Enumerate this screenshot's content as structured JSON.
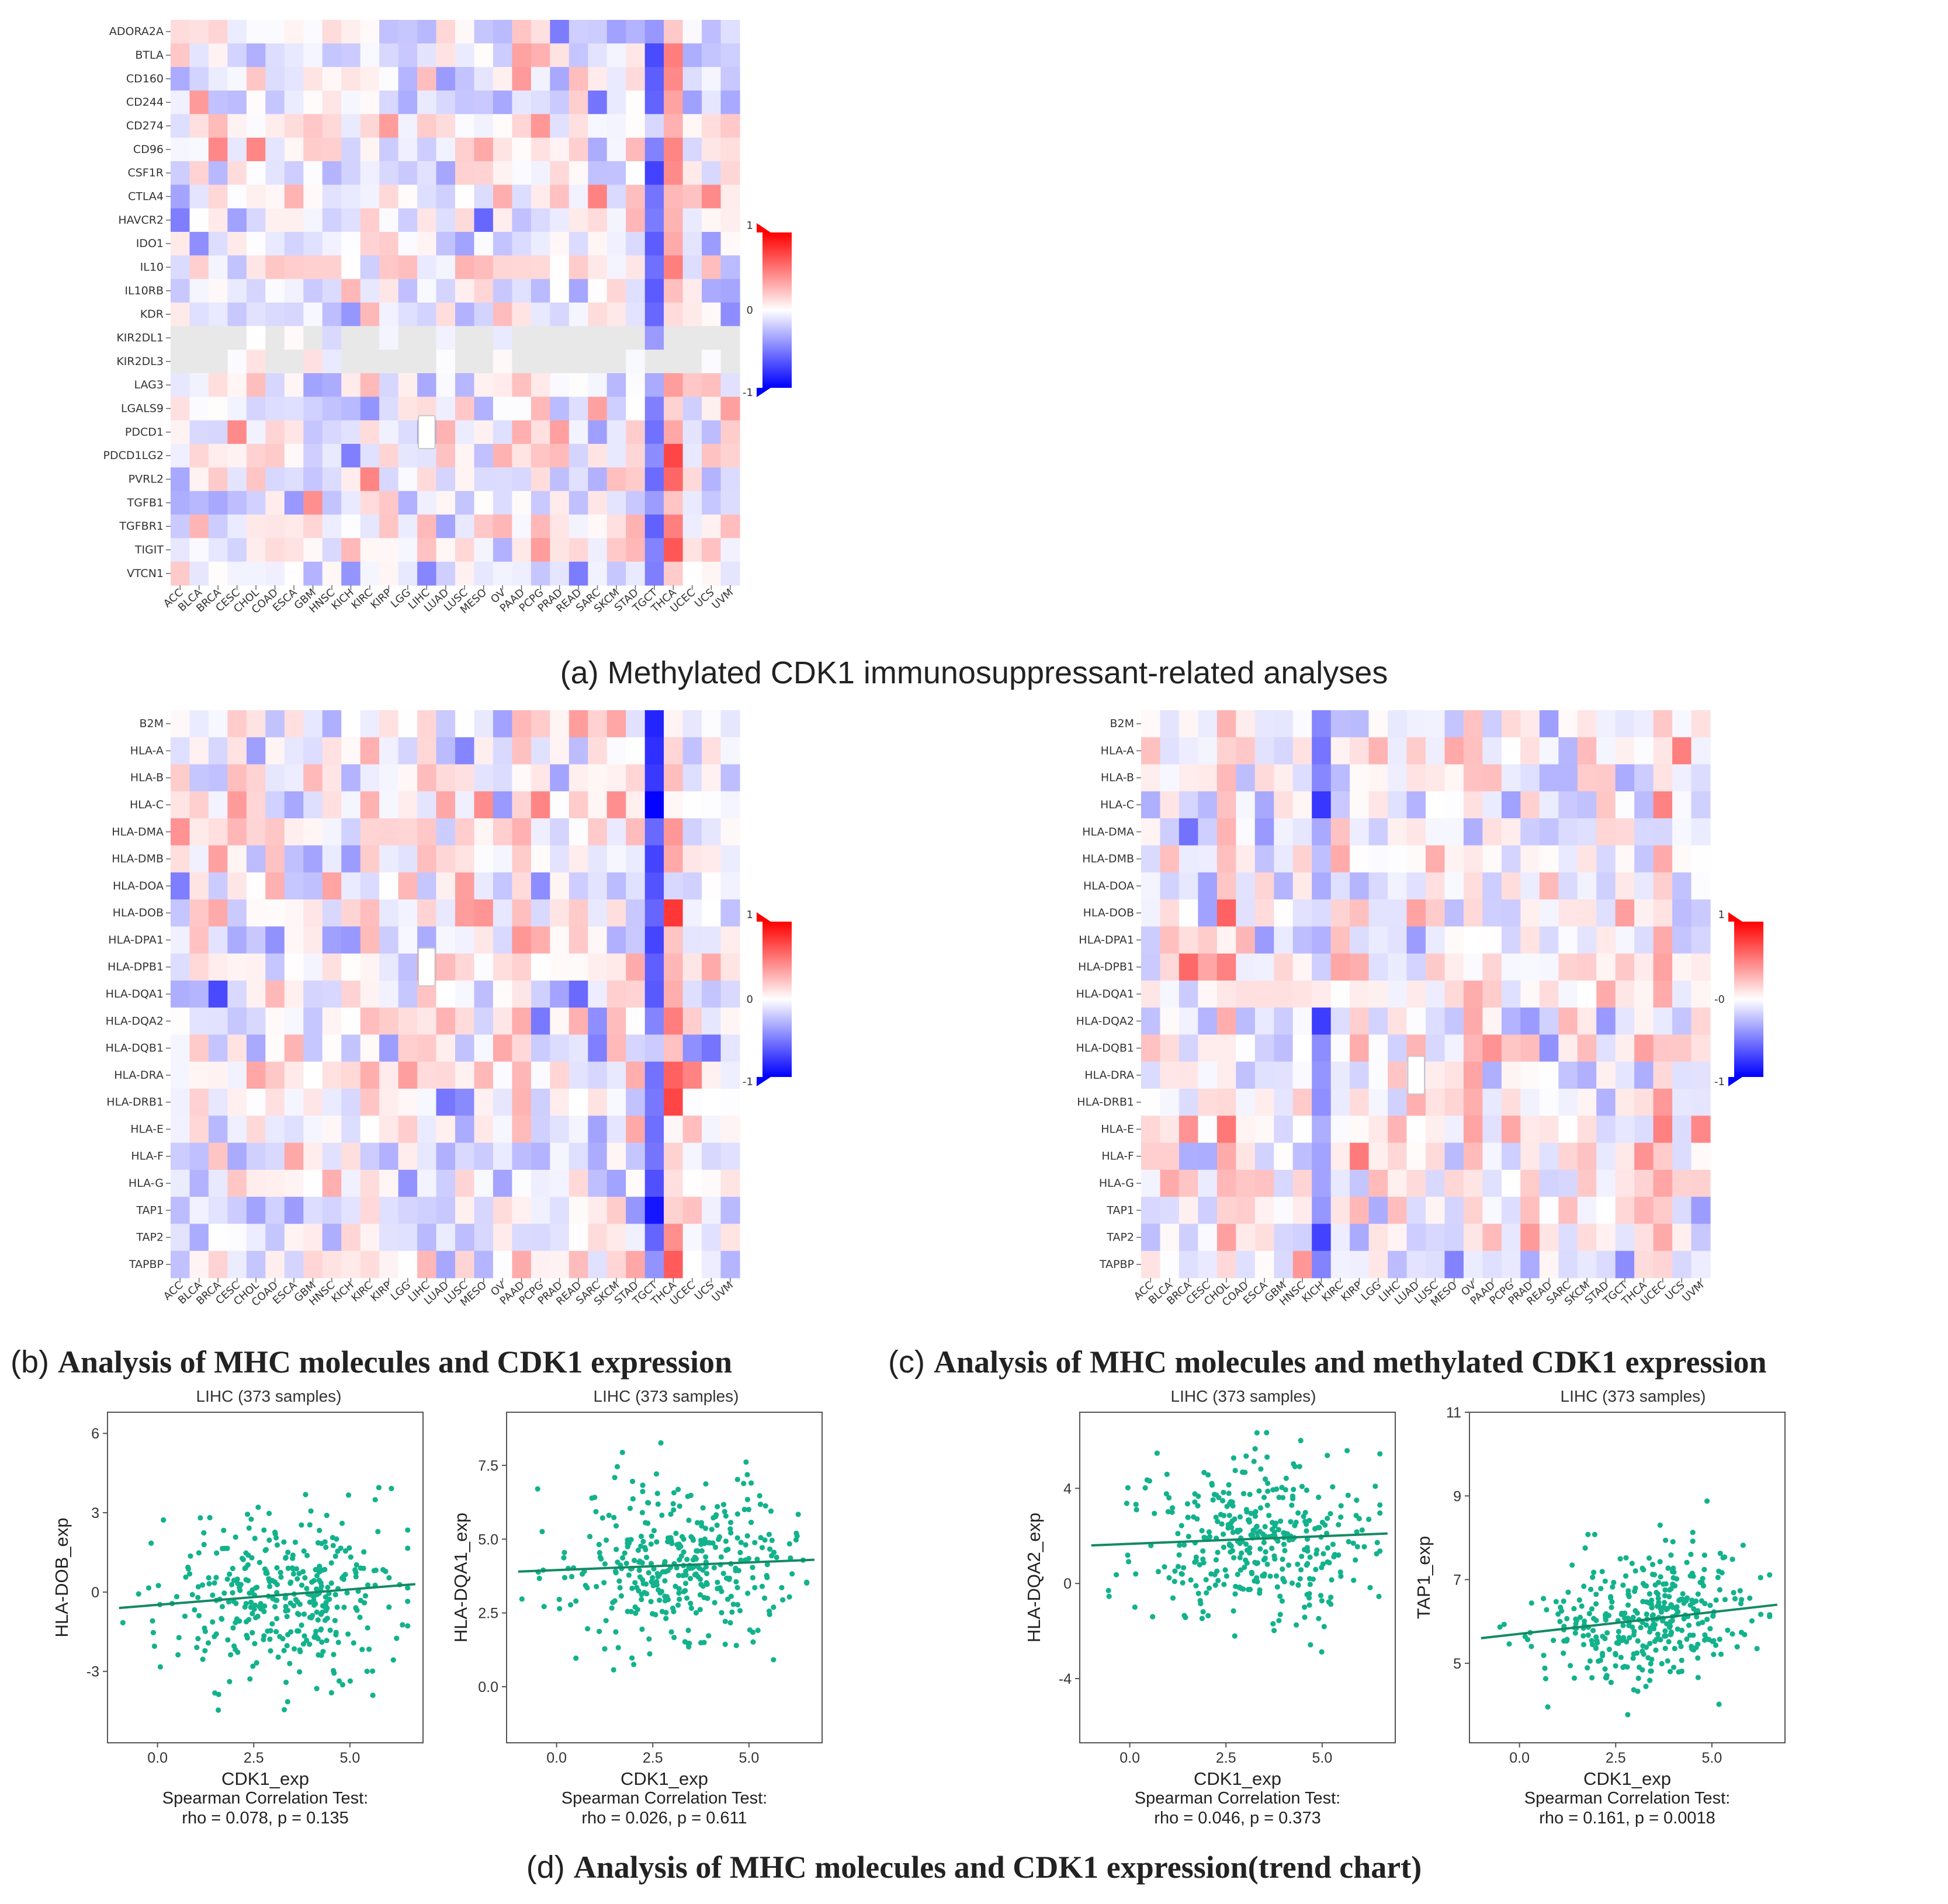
{
  "chart_data": [
    {
      "id": "heatmap-a",
      "type": "heatmap",
      "caption_label": "(a)",
      "caption_text": "Methylated CDK1 immunosuppressant-related analyses",
      "rows": [
        "ADORA2A",
        "BTLA",
        "CD160",
        "CD244",
        "CD274",
        "CD96",
        "CSF1R",
        "CTLA4",
        "HAVCR2",
        "IDO1",
        "IL10",
        "IL10RB",
        "KDR",
        "KIR2DL1",
        "KIR2DL3",
        "LAG3",
        "LGALS9",
        "PDCD1",
        "PDCD1LG2",
        "PVRL2",
        "TGFB1",
        "TGFBR1",
        "TIGIT",
        "VTCN1"
      ],
      "columns": [
        "ACC",
        "BLCA",
        "BRCA",
        "CESC",
        "CHOL",
        "COAD",
        "ESCA",
        "GBM",
        "HNSC",
        "KICH",
        "KIRC",
        "KIRP",
        "LGG",
        "LIHC",
        "LUAD",
        "LUSC",
        "MESO",
        "OV",
        "PAAD",
        "PCPG",
        "PRAD",
        "READ",
        "SARC",
        "SKCM",
        "STAD",
        "TGCT",
        "THCA",
        "UCEC",
        "UCS",
        "UVM"
      ],
      "colorbar": {
        "max_label": "1",
        "mid_label": "0",
        "min_label": "-1",
        "high_color": "#ff0000",
        "low_color": "#0000ff",
        "mid_color": "#ffffff"
      },
      "seed": 11,
      "column_bias": {
        "TGCT": -0.55,
        "THCA": 0.45
      },
      "gray_rows": [
        "KIR2DL1",
        "KIR2DL3"
      ],
      "highlight": {
        "row": "PDCD1",
        "column": "LIHC"
      }
    },
    {
      "id": "heatmap-b",
      "type": "heatmap",
      "caption_label": "(b)",
      "caption_text": "Analysis of MHC molecules and CDK1 expression",
      "rows": [
        "B2M",
        "HLA-A",
        "HLA-B",
        "HLA-C",
        "HLA-DMA",
        "HLA-DMB",
        "HLA-DOA",
        "HLA-DOB",
        "HLA-DPA1",
        "HLA-DPB1",
        "HLA-DQA1",
        "HLA-DQA2",
        "HLA-DQB1",
        "HLA-DRA",
        "HLA-DRB1",
        "HLA-E",
        "HLA-F",
        "HLA-G",
        "TAP1",
        "TAP2",
        "TAPBP"
      ],
      "columns": [
        "ACC",
        "BLCA",
        "BRCA",
        "CESC",
        "CHOL",
        "COAD",
        "ESCA",
        "GBM",
        "HNSC",
        "KICH",
        "KIRC",
        "KIRP",
        "LGG",
        "LIHC",
        "LUAD",
        "LUSC",
        "MESO",
        "OV",
        "PAAD",
        "PCPG",
        "PRAD",
        "READ",
        "SARC",
        "SKCM",
        "STAD",
        "TGCT",
        "THCA",
        "UCEC",
        "UCS",
        "UVM"
      ],
      "colorbar": {
        "max_label": "1",
        "mid_label": "0",
        "min_label": "-1",
        "high_color": "#ff0000",
        "low_color": "#0000ff",
        "mid_color": "#ffffff"
      },
      "seed": 23,
      "column_bias": {
        "TGCT": -0.75,
        "THCA": 0.3,
        "KIRC": 0.2,
        "LIHC": 0.1,
        "PAAD": 0.15
      },
      "gray_rows": [],
      "highlight": {
        "row": "HLA-DPB1",
        "column": "LIHC"
      }
    },
    {
      "id": "heatmap-c",
      "type": "heatmap",
      "caption_label": "(c)",
      "caption_text": "Analysis of MHC molecules and methylated CDK1 expression",
      "rows": [
        "B2M",
        "HLA-A",
        "HLA-B",
        "HLA-C",
        "HLA-DMA",
        "HLA-DMB",
        "HLA-DOA",
        "HLA-DOB",
        "HLA-DPA1",
        "HLA-DPB1",
        "HLA-DQA1",
        "HLA-DQA2",
        "HLA-DQB1",
        "HLA-DRA",
        "HLA-DRB1",
        "HLA-E",
        "HLA-F",
        "HLA-G",
        "TAP1",
        "TAP2",
        "TAPBP"
      ],
      "columns": [
        "ACC",
        "BLCA",
        "BRCA",
        "CESC",
        "CHOL",
        "COAD",
        "ESCA",
        "GBM",
        "HNSC",
        "KICH",
        "KIRC",
        "KIRP",
        "LGG",
        "LIHC",
        "LUAD",
        "LUSC",
        "MESO",
        "OV",
        "PAAD",
        "PCPG",
        "PRAD",
        "READ",
        "SARC",
        "SKCM",
        "STAD",
        "TGCT",
        "THCA",
        "UCEC",
        "UCS",
        "UVM"
      ],
      "colorbar": {
        "max_label": "1",
        "mid_label": "-0",
        "min_label": "-1",
        "high_color": "#ff0000",
        "low_color": "#0000ff",
        "mid_color": "#ffffff"
      },
      "seed": 37,
      "column_bias": {
        "CHOL": 0.35,
        "KICH": -0.45,
        "UCEC": 0.25,
        "OV": 0.25
      },
      "gray_rows": [],
      "highlight": {
        "row": "HLA-DRA",
        "column": "LUAD"
      }
    },
    {
      "id": "scatter-1",
      "type": "scatter",
      "title": "LIHC (373 samples)",
      "xlabel": "CDK1_exp",
      "ylabel": "HLA-DOB_exp",
      "xlim": [
        -1.3,
        6.9
      ],
      "ylim": [
        -5.7,
        6.8
      ],
      "xticks": [
        0.0,
        2.5,
        5.0
      ],
      "xtick_labels": [
        "0.0",
        "2.5",
        "5.0"
      ],
      "yticks": [
        -3,
        0,
        3,
        6
      ],
      "ytick_labels": [
        "-3",
        "0",
        "3",
        "6"
      ],
      "fit": {
        "x0": -1.0,
        "y0": -0.6,
        "x1": 6.7,
        "y1": 0.3
      },
      "y_center": 0.0,
      "y_spread": 1.9,
      "n_points": 373,
      "seed": 101,
      "test_label": "Spearman Correlation Test:",
      "stat_text": "rho = 0.078, p = 0.135"
    },
    {
      "id": "scatter-2",
      "type": "scatter",
      "title": "LIHC (373 samples)",
      "xlabel": "CDK1_exp",
      "ylabel": "HLA-DQA1_exp",
      "xlim": [
        -1.3,
        6.9
      ],
      "ylim": [
        -1.9,
        9.3
      ],
      "xticks": [
        0.0,
        2.5,
        5.0
      ],
      "xtick_labels": [
        "0.0",
        "2.5",
        "5.0"
      ],
      "yticks": [
        0.0,
        2.5,
        5.0,
        7.5
      ],
      "ytick_labels": [
        "0.0",
        "2.5",
        "5.0",
        "7.5"
      ],
      "fit": {
        "x0": -1.0,
        "y0": 3.9,
        "x1": 6.7,
        "y1": 4.3
      },
      "y_center": 4.2,
      "y_spread": 1.7,
      "n_points": 373,
      "seed": 202,
      "test_label": "Spearman Correlation Test:",
      "stat_text": "rho = 0.026, p = 0.611"
    },
    {
      "id": "scatter-3",
      "type": "scatter",
      "title": "LIHC (373 samples)",
      "xlabel": "CDK1_exp",
      "ylabel": "HLA-DQA2_exp",
      "xlim": [
        -1.3,
        6.9
      ],
      "ylim": [
        -6.7,
        7.2
      ],
      "xticks": [
        0.0,
        2.5,
        5.0
      ],
      "xtick_labels": [
        "0.0",
        "2.5",
        "5.0"
      ],
      "yticks": [
        -4,
        0,
        4
      ],
      "ytick_labels": [
        "-4",
        "0",
        "4"
      ],
      "fit": {
        "x0": -1.0,
        "y0": 1.6,
        "x1": 6.7,
        "y1": 2.1
      },
      "y_center": 1.8,
      "y_spread": 2.0,
      "n_points": 373,
      "seed": 303,
      "test_label": "Spearman Correlation Test:",
      "stat_text": "rho = 0.046, p = 0.373"
    },
    {
      "id": "scatter-4",
      "type": "scatter",
      "title": "LIHC (373 samples)",
      "xlabel": "CDK1_exp",
      "ylabel": "TAP1_exp",
      "xlim": [
        -1.3,
        6.9
      ],
      "ylim": [
        3.1,
        11.0
      ],
      "xticks": [
        0.0,
        2.5,
        5.0
      ],
      "xtick_labels": [
        "0.0",
        "2.5",
        "5.0"
      ],
      "yticks": [
        5,
        7,
        9,
        11
      ],
      "ytick_labels": [
        "5",
        "7",
        "9",
        "11"
      ],
      "fit": {
        "x0": -1.0,
        "y0": 5.6,
        "x1": 6.7,
        "y1": 6.4
      },
      "y_center": 6.0,
      "y_spread": 0.9,
      "n_points": 373,
      "seed": 404,
      "test_label": "Spearman Correlation Test:",
      "stat_text": "rho = 0.161, p = 0.0018"
    }
  ],
  "panel_d": {
    "caption_label": "(d)",
    "caption_text": "Analysis of MHC molecules and CDK1 expression(trend chart)"
  },
  "colors": {
    "scatter_point": "#12b28c",
    "fit_line": "#138a63",
    "axis": "#555555",
    "empty_cell": "#e8e8e8",
    "highlight_border": "#c8c8c8"
  }
}
